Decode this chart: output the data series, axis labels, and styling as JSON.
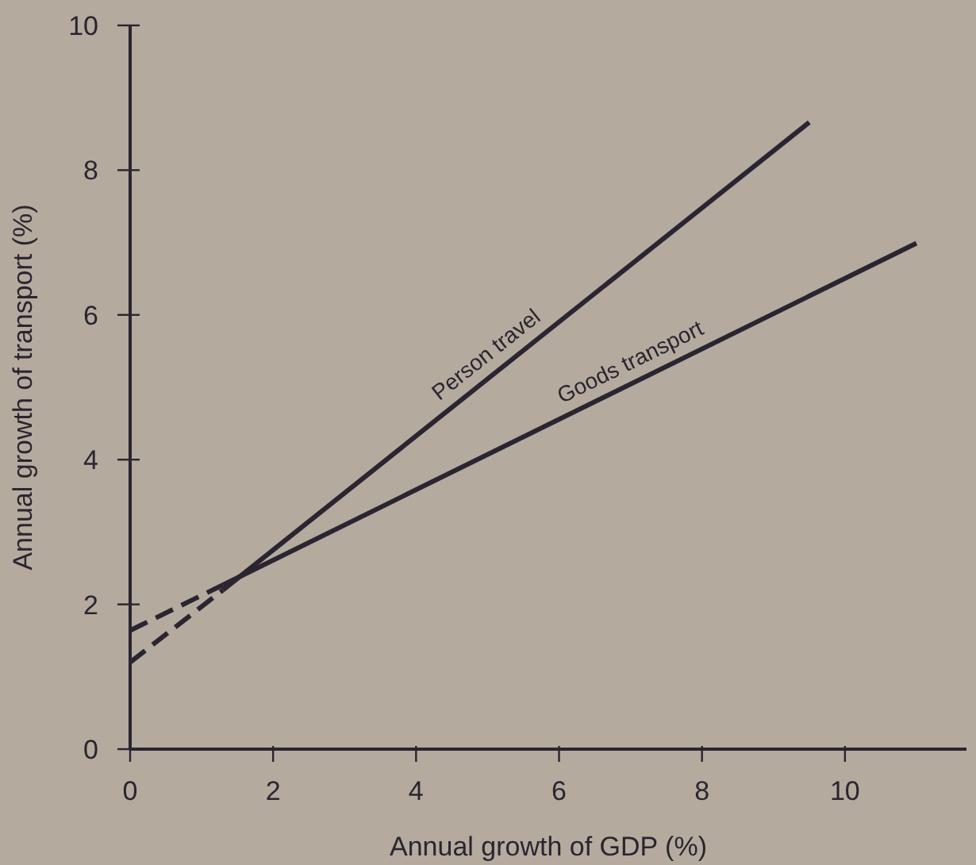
{
  "chart_data": {
    "type": "line",
    "xlabel": "Annual growth of GDP (%)",
    "ylabel": "Annual growth of transport (%)",
    "xlim": [
      0,
      11.7
    ],
    "xticks": [
      0,
      2,
      4,
      6,
      8,
      10
    ],
    "ylim": [
      0,
      10
    ],
    "yticks": [
      0,
      2,
      4,
      6,
      8,
      10
    ],
    "marker": "none",
    "series": [
      {
        "name": "Person travel",
        "color": "#2a2530",
        "x": [
          1.3,
          9.5
        ],
        "values": [
          2.2,
          8.66
        ],
        "line_style": "solid"
      },
      {
        "color": "#2a2530",
        "x": [
          0,
          1.3
        ],
        "values": [
          1.2,
          2.2
        ],
        "line_style": "dashed"
      },
      {
        "name": "Goods transport",
        "color": "#2a2530",
        "x": [
          1.3,
          11
        ],
        "values": [
          2.27,
          6.99
        ],
        "line_style": "solid"
      },
      {
        "color": "#2a2530",
        "x": [
          0,
          1.3
        ],
        "values": [
          1.64,
          2.27
        ],
        "line_style": "dashed"
      }
    ]
  }
}
